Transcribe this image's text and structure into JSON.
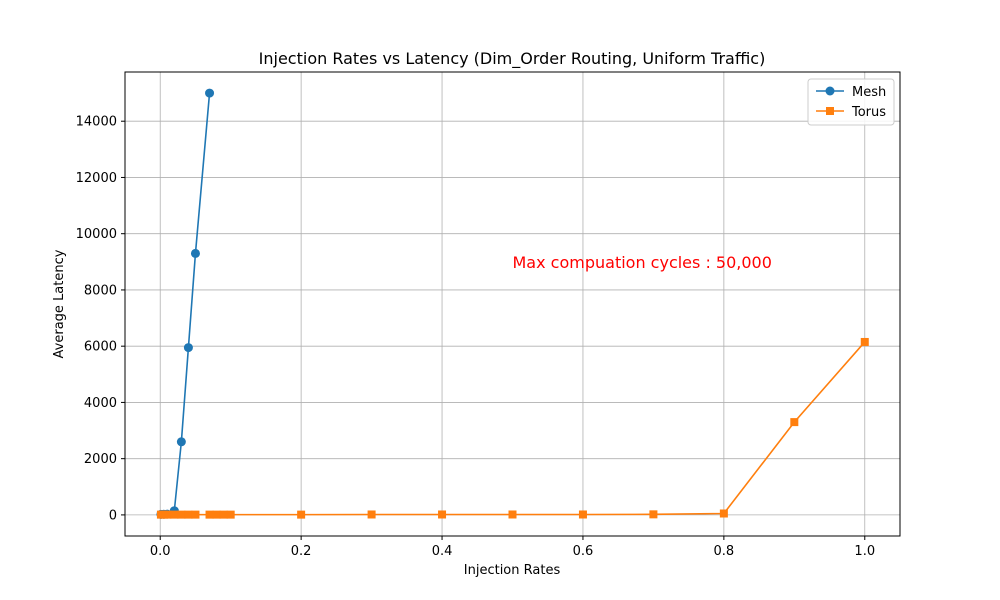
{
  "chart_data": {
    "type": "line",
    "title": "Injection Rates vs Latency (Dim_Order Routing, Uniform Traffic)",
    "xlabel": "Injection Rates",
    "ylabel": "Average Latency",
    "xlim": [
      -0.05,
      1.05
    ],
    "ylim": [
      -750,
      15750
    ],
    "xticks": [
      0.0,
      0.2,
      0.4,
      0.6,
      0.8,
      1.0
    ],
    "xtick_labels": [
      "0.0",
      "0.2",
      "0.4",
      "0.6",
      "0.8",
      "1.0"
    ],
    "yticks": [
      0,
      2000,
      4000,
      6000,
      8000,
      10000,
      12000,
      14000
    ],
    "ytick_labels": [
      "0",
      "2000",
      "4000",
      "6000",
      "8000",
      "10000",
      "12000",
      "14000"
    ],
    "grid": true,
    "legend_position": "top-right",
    "annotation": {
      "text": "Max compuation cycles : 50,000",
      "x": 0.5,
      "y": 9000,
      "color": "#ff0000"
    },
    "series": [
      {
        "name": "Mesh",
        "color": "#1f77b4",
        "marker": "circle",
        "x": [
          0.001,
          0.005,
          0.01,
          0.02,
          0.03,
          0.04,
          0.05,
          0.07
        ],
        "y": [
          20,
          25,
          30,
          150,
          2600,
          5950,
          9300,
          15000
        ]
      },
      {
        "name": "Torus",
        "color": "#ff7f0e",
        "marker": "square",
        "x": [
          0.001,
          0.005,
          0.01,
          0.02,
          0.03,
          0.04,
          0.05,
          0.07,
          0.08,
          0.09,
          0.1,
          0.2,
          0.3,
          0.4,
          0.5,
          0.6,
          0.7,
          0.8,
          0.9,
          1.0
        ],
        "y": [
          10,
          10,
          10,
          10,
          10,
          10,
          10,
          10,
          10,
          10,
          10,
          10,
          15,
          15,
          15,
          15,
          20,
          50,
          3300,
          6150
        ]
      }
    ]
  }
}
